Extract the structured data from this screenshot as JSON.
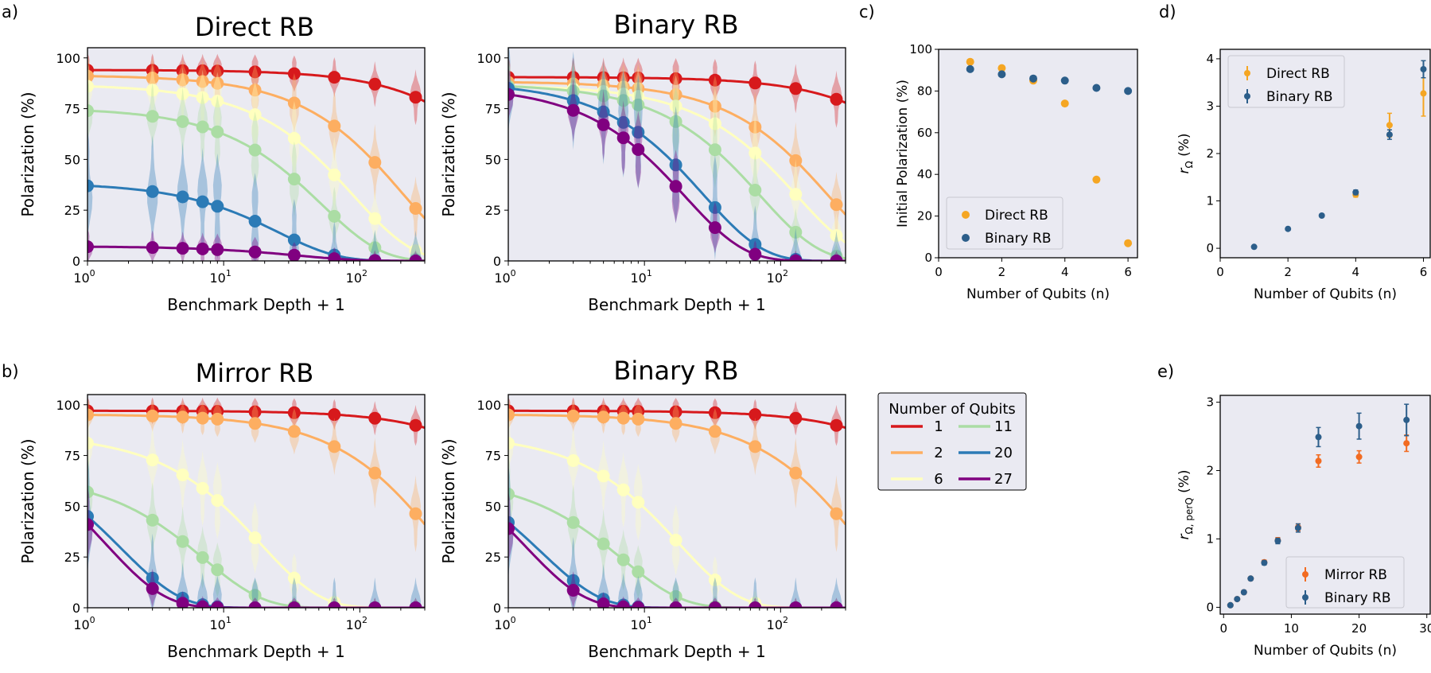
{
  "chart_data": {
    "panel_labels": [
      "a)",
      "b)",
      "c)",
      "d)",
      "e)"
    ],
    "colors": {
      "1": "#d7191c",
      "2": "#fdae61",
      "6": "#ffffbf",
      "11": "#abdda4",
      "20": "#2c7bb6",
      "27": "#800080",
      "direct": "#f5a623",
      "binary": "#2c5e8a",
      "mirror": "#f26b21",
      "axes_bg": "#eaeaf2"
    },
    "legend_qubits": {
      "title": "Number of Qubits",
      "entries": [
        {
          "label": "1",
          "key": "1"
        },
        {
          "label": "11",
          "key": "11"
        },
        {
          "label": "2",
          "key": "2"
        },
        {
          "label": "20",
          "key": "20"
        },
        {
          "label": "6",
          "key": "6"
        },
        {
          "label": "27",
          "key": "27"
        }
      ]
    },
    "decay_panels": [
      {
        "id": "direct",
        "type": "line",
        "title": "Direct RB",
        "xlabel": "Benchmark Depth + 1",
        "ylabel": "Polarization (%)",
        "xscale": "log",
        "xlim": [
          1,
          300
        ],
        "ylim": [
          0,
          105
        ],
        "xticks": [
          1,
          10,
          100
        ],
        "xtick_labels": [
          "10^0",
          "10^1",
          "10^2"
        ],
        "yticks": [
          0,
          25,
          50,
          75,
          100
        ],
        "ytick_labels": [
          "0",
          "25",
          "50",
          "75",
          "100"
        ],
        "depths": [
          1,
          3,
          5,
          7,
          9,
          17,
          33,
          65,
          129,
          257
        ],
        "series": [
          {
            "name": "1",
            "key": "1",
            "A": 94,
            "p": 0.9994
          },
          {
            "name": "2",
            "key": "2",
            "A": 91,
            "p": 0.9951
          },
          {
            "name": "6",
            "key": "6",
            "A": 86,
            "p": 0.989
          },
          {
            "name": "11",
            "key": "11",
            "A": 74,
            "p": 0.9812
          },
          {
            "name": "20",
            "key": "20",
            "A": 37,
            "p": 0.961
          },
          {
            "name": "27",
            "key": "27",
            "A": 7,
            "p": 0.972
          }
        ]
      },
      {
        "id": "binary-top",
        "type": "line",
        "title": "Binary RB",
        "xlabel": "Benchmark Depth + 1",
        "ylabel": "Polarization (%)",
        "xscale": "log",
        "xlim": [
          1,
          300
        ],
        "ylim": [
          0,
          105
        ],
        "xticks": [
          1,
          10,
          100
        ],
        "xtick_labels": [
          "10^0",
          "10^1",
          "10^2"
        ],
        "yticks": [
          0,
          25,
          50,
          75,
          100
        ],
        "ytick_labels": [
          "0",
          "25",
          "50",
          "75",
          "100"
        ],
        "depths": [
          1,
          3,
          5,
          7,
          9,
          17,
          33,
          65,
          129,
          257
        ],
        "series": [
          {
            "name": "1",
            "key": "1",
            "A": 90.5,
            "p": 0.9995
          },
          {
            "name": "2",
            "key": "2",
            "A": 88,
            "p": 0.9955
          },
          {
            "name": "6",
            "key": "6",
            "A": 86,
            "p": 0.9925
          },
          {
            "name": "11",
            "key": "11",
            "A": 86,
            "p": 0.986
          },
          {
            "name": "20",
            "key": "20",
            "A": 85,
            "p": 0.964
          },
          {
            "name": "27",
            "key": "27",
            "A": 82,
            "p": 0.951
          }
        ]
      },
      {
        "id": "mirror",
        "type": "line",
        "title": "Mirror RB",
        "xlabel": "Benchmark Depth + 1",
        "ylabel": "Polarization (%)",
        "xscale": "log",
        "xlim": [
          1,
          300
        ],
        "ylim": [
          0,
          105
        ],
        "xticks": [
          1,
          10,
          100
        ],
        "xtick_labels": [
          "10^0",
          "10^1",
          "10^2"
        ],
        "yticks": [
          0,
          25,
          50,
          75,
          100
        ],
        "ytick_labels": [
          "0",
          "25",
          "50",
          "75",
          "100"
        ],
        "depths": [
          1,
          3,
          5,
          7,
          9,
          17,
          33,
          65,
          129,
          257
        ],
        "series": [
          {
            "name": "1",
            "key": "1",
            "A": 97,
            "p": 0.9997
          },
          {
            "name": "2",
            "key": "2",
            "A": 95,
            "p": 0.9972
          },
          {
            "name": "6",
            "key": "6",
            "A": 81,
            "p": 0.948
          },
          {
            "name": "11",
            "key": "11",
            "A": 57,
            "p": 0.87
          },
          {
            "name": "20",
            "key": "20",
            "A": 45,
            "p": 0.57
          },
          {
            "name": "27",
            "key": "27",
            "A": 41,
            "p": 0.48
          }
        ]
      },
      {
        "id": "binary-bottom",
        "type": "line",
        "title": "Binary RB",
        "xlabel": "Benchmark Depth + 1",
        "ylabel": "Polarization (%)",
        "xscale": "log",
        "xlim": [
          1,
          300
        ],
        "ylim": [
          0,
          105
        ],
        "xticks": [
          1,
          10,
          100
        ],
        "xtick_labels": [
          "10^0",
          "10^1",
          "10^2"
        ],
        "yticks": [
          0,
          25,
          50,
          75,
          100
        ],
        "ytick_labels": [
          "0",
          "25",
          "50",
          "75",
          "100"
        ],
        "depths": [
          1,
          3,
          5,
          7,
          9,
          17,
          33,
          65,
          129,
          257
        ],
        "series": [
          {
            "name": "1",
            "key": "1",
            "A": 97,
            "p": 0.9997
          },
          {
            "name": "2",
            "key": "2",
            "A": 95,
            "p": 0.9972
          },
          {
            "name": "6",
            "key": "6",
            "A": 81,
            "p": 0.946
          },
          {
            "name": "11",
            "key": "11",
            "A": 56,
            "p": 0.866
          },
          {
            "name": "20",
            "key": "20",
            "A": 42,
            "p": 0.565
          },
          {
            "name": "27",
            "key": "27",
            "A": 39,
            "p": 0.47
          }
        ]
      }
    ],
    "panel_c": {
      "type": "scatter",
      "xlabel": "Number of Qubits (n)",
      "ylabel": "Initial Polarization (%)",
      "xlim": [
        0,
        6.3
      ],
      "ylim": [
        0,
        100
      ],
      "xticks": [
        0,
        2,
        4,
        6
      ],
      "xtick_labels": [
        "0",
        "2",
        "4",
        "6"
      ],
      "yticks": [
        0,
        20,
        40,
        60,
        80,
        100
      ],
      "ytick_labels": [
        "0",
        "20",
        "40",
        "60",
        "80",
        "100"
      ],
      "legend": [
        "Direct RB",
        "Binary RB"
      ],
      "series": [
        {
          "name": "Direct RB",
          "key": "direct",
          "x": [
            1,
            2,
            3,
            4,
            5,
            6
          ],
          "y": [
            94,
            91,
            85,
            74,
            37.5,
            7
          ]
        },
        {
          "name": "Binary RB",
          "key": "binary",
          "x": [
            1,
            2,
            3,
            4,
            5,
            6
          ],
          "y": [
            90.5,
            88,
            86,
            85,
            81.5,
            80
          ]
        }
      ]
    },
    "panel_d": {
      "type": "scatter",
      "xlabel": "Number of Qubits (n)",
      "ylabel": "r",
      "ylabel_sub": "Ω",
      "ylabel_suffix": " (%)",
      "xlim": [
        0,
        6.2
      ],
      "ylim": [
        -0.2,
        4.2
      ],
      "xticks": [
        0,
        2,
        4,
        6
      ],
      "xtick_labels": [
        "0",
        "2",
        "4",
        "6"
      ],
      "yticks": [
        0,
        1,
        2,
        3,
        4
      ],
      "ytick_labels": [
        "0",
        "1",
        "2",
        "3",
        "4"
      ],
      "legend": [
        "Direct RB",
        "Binary RB"
      ],
      "series": [
        {
          "name": "Direct RB",
          "key": "direct",
          "x": [
            4,
            5,
            6
          ],
          "y": [
            1.13,
            2.6,
            3.27
          ],
          "err": [
            0.05,
            0.25,
            0.48
          ]
        },
        {
          "name": "Binary RB",
          "key": "binary",
          "x": [
            1,
            2,
            3,
            4,
            5,
            6
          ],
          "y": [
            0.03,
            0.41,
            0.69,
            1.18,
            2.4,
            3.78
          ],
          "err": [
            0.01,
            0.02,
            0.03,
            0.05,
            0.1,
            0.18
          ]
        }
      ]
    },
    "panel_e": {
      "type": "scatter",
      "xlabel": "Number of Qubits (n)",
      "ylabel": "r",
      "ylabel_sub": "Ω, perQ",
      "ylabel_suffix": " (%)",
      "xlim": [
        -0.5,
        30.5
      ],
      "ylim": [
        -0.1,
        3.1
      ],
      "xticks": [
        0,
        10,
        20,
        30
      ],
      "xtick_labels": [
        "0",
        "10",
        "20",
        "30"
      ],
      "yticks": [
        0,
        1,
        2,
        3
      ],
      "ytick_labels": [
        "0",
        "1",
        "2",
        "3"
      ],
      "legend": [
        "Mirror RB",
        "Binary RB"
      ],
      "series": [
        {
          "name": "Mirror RB",
          "key": "mirror",
          "x": [
            1,
            2,
            3,
            4,
            6,
            8,
            11,
            14,
            20,
            27
          ],
          "y": [
            0.03,
            0.12,
            0.22,
            0.42,
            0.66,
            0.98,
            1.17,
            2.14,
            2.2,
            2.4
          ],
          "err": [
            0.01,
            0.01,
            0.02,
            0.02,
            0.03,
            0.04,
            0.05,
            0.09,
            0.09,
            0.12
          ]
        },
        {
          "name": "Binary RB",
          "key": "binary",
          "x": [
            1,
            2,
            3,
            4,
            6,
            8,
            11,
            14,
            20,
            27
          ],
          "y": [
            0.03,
            0.12,
            0.22,
            0.42,
            0.65,
            0.97,
            1.16,
            2.49,
            2.65,
            2.74
          ],
          "err": [
            0.01,
            0.01,
            0.02,
            0.02,
            0.03,
            0.04,
            0.06,
            0.14,
            0.19,
            0.23
          ]
        }
      ]
    }
  }
}
